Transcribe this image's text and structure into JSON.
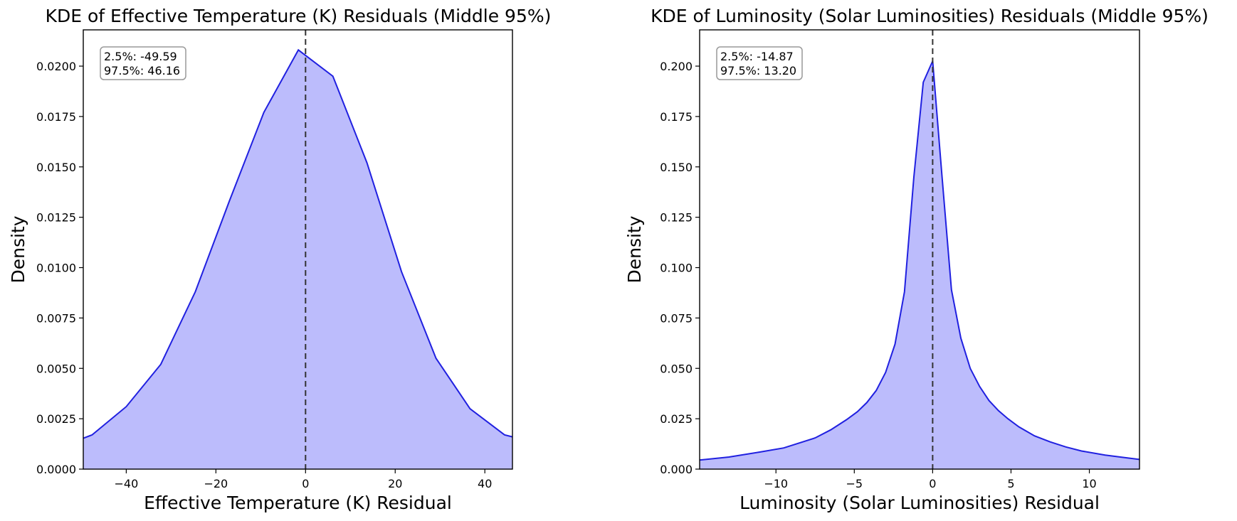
{
  "chart_data": [
    {
      "type": "area",
      "title": "KDE of Effective Temperature (K) Residuals (Middle 95%)",
      "xlabel": "Effective Temperature (K) Residual",
      "ylabel": "Density",
      "xlim": [
        -49.59,
        46.16
      ],
      "ylim": [
        0,
        0.0218
      ],
      "xticks": [
        -40,
        -20,
        0,
        20,
        40
      ],
      "xtick_labels": [
        "−40",
        "−20",
        "0",
        "20",
        "40"
      ],
      "yticks": [
        0,
        0.0025,
        0.005,
        0.0075,
        0.01,
        0.0125,
        0.015,
        0.0175,
        0.02
      ],
      "ytick_labels": [
        "0.0000",
        "0.0025",
        "0.0050",
        "0.0075",
        "0.0100",
        "0.0125",
        "0.0150",
        "0.0175",
        "0.0200"
      ],
      "grid": false,
      "vline_x": 0,
      "annotation": [
        "2.5%: -49.59",
        "97.5%: 46.16"
      ],
      "line_color": "#2020e0",
      "fill_color": "#bcbcfc",
      "series": [
        {
          "x": [
            -49.59,
            -47.6,
            -40,
            -32.3,
            -24.6,
            -17,
            -9.3,
            -1.6,
            6.1,
            13.7,
            21.4,
            29.1,
            36.7,
            44.4,
            46.16
          ],
          "y": [
            0.00153,
            0.0017,
            0.0031,
            0.0052,
            0.0088,
            0.0133,
            0.0177,
            0.0208,
            0.0195,
            0.0152,
            0.0098,
            0.0055,
            0.003,
            0.0017,
            0.0016
          ]
        }
      ]
    },
    {
      "type": "area",
      "title": "KDE of Luminosity (Solar Luminosities) Residuals (Middle 95%)",
      "xlabel": "Luminosity (Solar Luminosities) Residual",
      "ylabel": "Density",
      "xlim": [
        -14.87,
        13.2
      ],
      "ylim": [
        0,
        0.218
      ],
      "xticks": [
        -10,
        -5,
        0,
        5,
        10
      ],
      "xtick_labels": [
        "−10",
        "−5",
        "0",
        "5",
        "10"
      ],
      "yticks": [
        0,
        0.025,
        0.05,
        0.075,
        0.1,
        0.125,
        0.15,
        0.175,
        0.2
      ],
      "ytick_labels": [
        "0.000",
        "0.025",
        "0.050",
        "0.075",
        "0.100",
        "0.125",
        "0.150",
        "0.175",
        "0.200"
      ],
      "grid": false,
      "vline_x": 0,
      "annotation": [
        "2.5%: -14.87",
        "97.5%: 13.20"
      ],
      "line_color": "#2020e0",
      "fill_color": "#bcbcfc",
      "series": [
        {
          "x": [
            -14.87,
            -13,
            -11,
            -9.5,
            -7.5,
            -6.5,
            -5.5,
            -4.8,
            -4.2,
            -3.6,
            -3.0,
            -2.4,
            -1.8,
            -1.2,
            -0.6,
            0,
            0.6,
            1.2,
            1.8,
            2.4,
            3.0,
            3.6,
            4.2,
            4.8,
            5.5,
            6.5,
            7.5,
            8.5,
            9.5,
            11,
            12.2,
            13.2
          ],
          "y": [
            0.0045,
            0.006,
            0.0085,
            0.0105,
            0.0155,
            0.0195,
            0.0245,
            0.0285,
            0.033,
            0.039,
            0.048,
            0.062,
            0.088,
            0.145,
            0.192,
            0.2025,
            0.145,
            0.089,
            0.065,
            0.05,
            0.041,
            0.034,
            0.029,
            0.025,
            0.021,
            0.0165,
            0.0135,
            0.011,
            0.009,
            0.007,
            0.0058,
            0.0048
          ]
        }
      ]
    }
  ]
}
